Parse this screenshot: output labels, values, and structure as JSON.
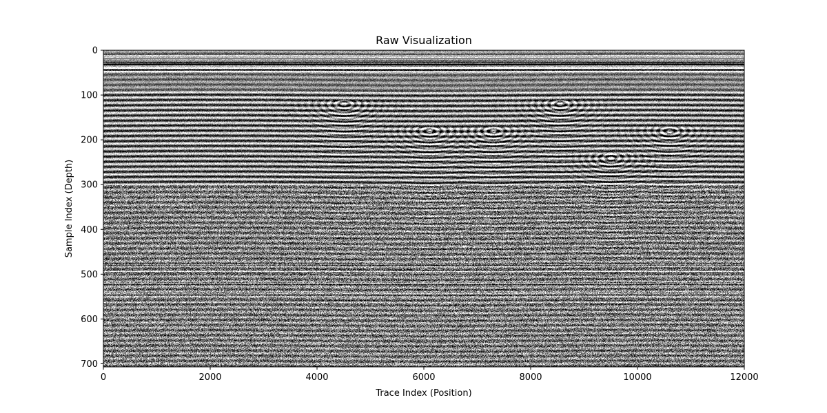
{
  "chart_data": {
    "type": "heatmap",
    "title": "Raw Visualization",
    "xlabel": "Trace Index (Position)",
    "ylabel": "Sample Index (Depth)",
    "xlim": [
      0,
      12000
    ],
    "ylim": [
      707,
      0
    ],
    "colormap": "gray",
    "x_ticks": [
      0,
      2000,
      4000,
      6000,
      8000,
      10000,
      12000
    ],
    "y_ticks": [
      0,
      100,
      200,
      300,
      400,
      500,
      600,
      700
    ],
    "x_tick_labels": [
      "0",
      "2000",
      "4000",
      "6000",
      "8000",
      "10000",
      "12000"
    ],
    "y_tick_labels": [
      "0",
      "100",
      "200",
      "300",
      "400",
      "500",
      "600",
      "700"
    ],
    "grid": false,
    "colorbar": false,
    "features": {
      "direct_wave_band_depth": [
        10,
        50
      ],
      "strong_horizontal_reflectors_depth": [
        480,
        495,
        520,
        545,
        560
      ],
      "hyperbola_apex_traces": [
        4500,
        6100,
        7300,
        8550,
        9500,
        10600
      ],
      "high_contrast_layered_zone_depth": [
        90,
        300
      ]
    }
  }
}
